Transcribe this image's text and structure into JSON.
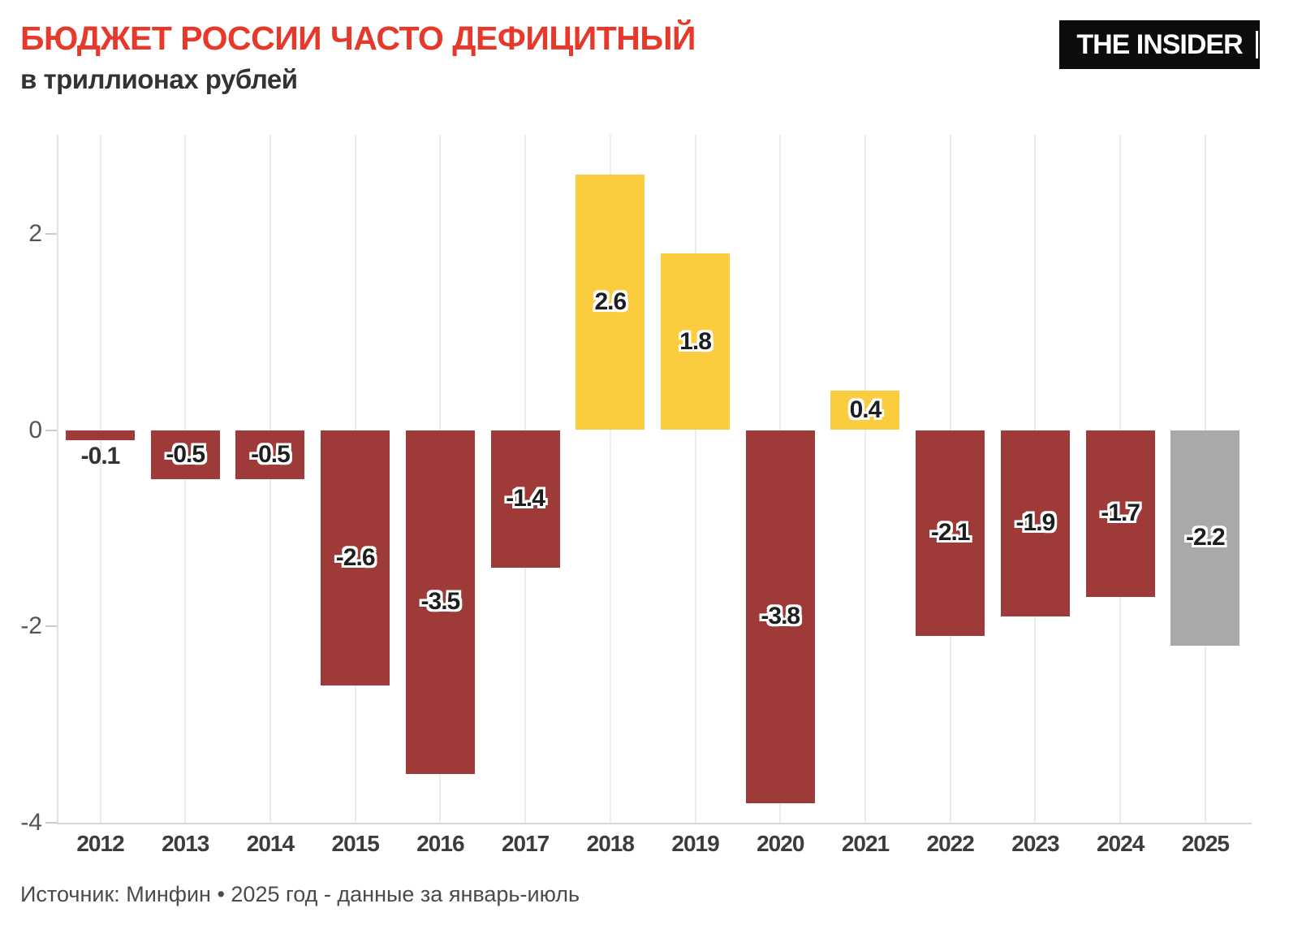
{
  "header": {
    "title": "БЮДЖЕТ РОССИИ ЧАСТО ДЕФИЦИТНЫЙ",
    "subtitle": "в триллионах рублей",
    "logo_text": "THE INSIDER"
  },
  "footer": {
    "source": "Источник: Минфин • 2025 год - данные за январь-июль"
  },
  "colors": {
    "title_red": "#E6392C",
    "deficit_bar": "#9E3A37",
    "surplus_bar": "#FACC3E",
    "current_year_bar": "#A9A9A9",
    "gridline": "#ECECEC",
    "value_label": "#1E1E1E",
    "axis_label": "#555555",
    "year_label": "#3C3C3C",
    "logo_bg": "#0C0C0C",
    "logo_text": "#FFFFFF"
  },
  "chart_data": {
    "type": "bar",
    "title": "БЮДЖЕТ РОССИИ ЧАСТО ДЕФИЦИТНЫЙ",
    "units": "в триллионах рублей",
    "categories": [
      "2012",
      "2013",
      "2014",
      "2015",
      "2016",
      "2017",
      "2018",
      "2019",
      "2020",
      "2021",
      "2022",
      "2023",
      "2024",
      "2025"
    ],
    "values": [
      -0.1,
      -0.5,
      -0.5,
      -2.6,
      -3.5,
      -1.4,
      2.6,
      1.8,
      -3.8,
      0.4,
      -2.1,
      -1.9,
      -1.7,
      -2.2
    ],
    "value_labels": [
      "-0.1",
      "-0.5",
      "-0.5",
      "-2.6",
      "-3.5",
      "-1.4",
      "2.6",
      "1.8",
      "-3.8",
      "0.4",
      "-2.1",
      "-1.9",
      "-1.7",
      "-2.2"
    ],
    "point_colors": [
      "deficit",
      "deficit",
      "deficit",
      "deficit",
      "deficit",
      "deficit",
      "surplus",
      "surplus",
      "deficit",
      "surplus",
      "deficit",
      "deficit",
      "deficit",
      "current"
    ],
    "ytick_labels": [
      "2",
      "0",
      "-2",
      "-4"
    ],
    "ytick_values": [
      2,
      0,
      -2,
      -4
    ],
    "ylim": [
      -4.35,
      3.0
    ],
    "grid": "vertical-only",
    "legend": "none"
  }
}
